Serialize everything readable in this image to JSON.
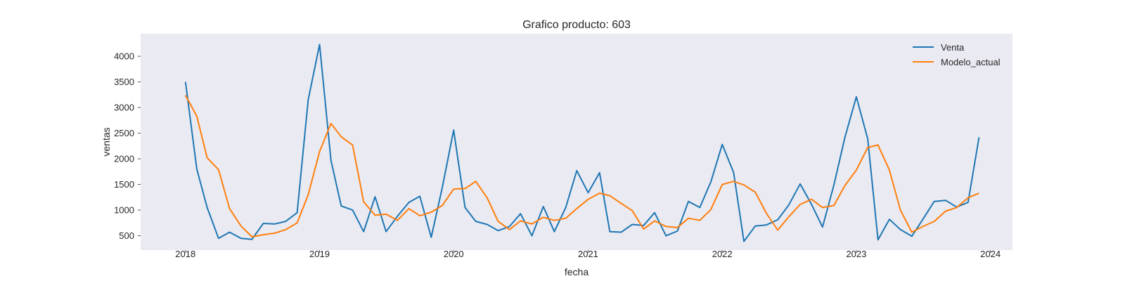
{
  "chart_data": {
    "type": "line",
    "title": "Grafico producto: 603",
    "xlabel": "fecha",
    "ylabel": "ventas",
    "x_start": "2018-01",
    "x_frequency": "monthly",
    "xlim": [
      "2017-09-01",
      "2024-03-01"
    ],
    "ylim": [
      220,
      4440
    ],
    "x_ticks": [
      {
        "date": "2018-01-01",
        "label": "2018"
      },
      {
        "date": "2019-01-01",
        "label": "2019"
      },
      {
        "date": "2020-01-01",
        "label": "2020"
      },
      {
        "date": "2021-01-01",
        "label": "2021"
      },
      {
        "date": "2022-01-01",
        "label": "2022"
      },
      {
        "date": "2023-01-01",
        "label": "2023"
      },
      {
        "date": "2024-01-01",
        "label": "2024"
      }
    ],
    "y_ticks": [
      500,
      1000,
      1500,
      2000,
      2500,
      3000,
      3500,
      4000
    ],
    "grid": false,
    "background": "#eaeaf2",
    "legend_position": "top-right",
    "series": [
      {
        "name": "Venta",
        "color": "#1f77b4",
        "values": [
          3500,
          1800,
          1050,
          450,
          570,
          450,
          430,
          740,
          730,
          780,
          950,
          3150,
          4230,
          1970,
          1080,
          1000,
          580,
          1260,
          580,
          880,
          1150,
          1270,
          470,
          1440,
          2560,
          1050,
          780,
          720,
          600,
          680,
          930,
          500,
          1070,
          580,
          1050,
          1770,
          1340,
          1730,
          580,
          570,
          720,
          700,
          950,
          500,
          590,
          1170,
          1050,
          1550,
          2280,
          1730,
          390,
          690,
          710,
          810,
          1100,
          1510,
          1110,
          670,
          1490,
          2420,
          3210,
          2390,
          420,
          820,
          620,
          490,
          820,
          1170,
          1190,
          1060,
          1150,
          2420
        ]
      },
      {
        "name": "Modelo_actual",
        "color": "#ff7f0e",
        "values": [
          3240,
          2830,
          2020,
          1790,
          1030,
          690,
          480,
          520,
          550,
          620,
          750,
          1300,
          2140,
          2690,
          2430,
          2270,
          1160,
          900,
          920,
          800,
          1030,
          890,
          960,
          1090,
          1410,
          1420,
          1560,
          1240,
          780,
          620,
          790,
          730,
          860,
          800,
          840,
          1030,
          1210,
          1330,
          1280,
          1130,
          990,
          630,
          790,
          680,
          660,
          840,
          800,
          1010,
          1500,
          1560,
          1490,
          1350,
          940,
          610,
          870,
          1110,
          1210,
          1050,
          1090,
          1480,
          1780,
          2220,
          2270,
          1780,
          1000,
          570,
          680,
          780,
          980,
          1050,
          1240,
          1330
        ]
      }
    ]
  }
}
